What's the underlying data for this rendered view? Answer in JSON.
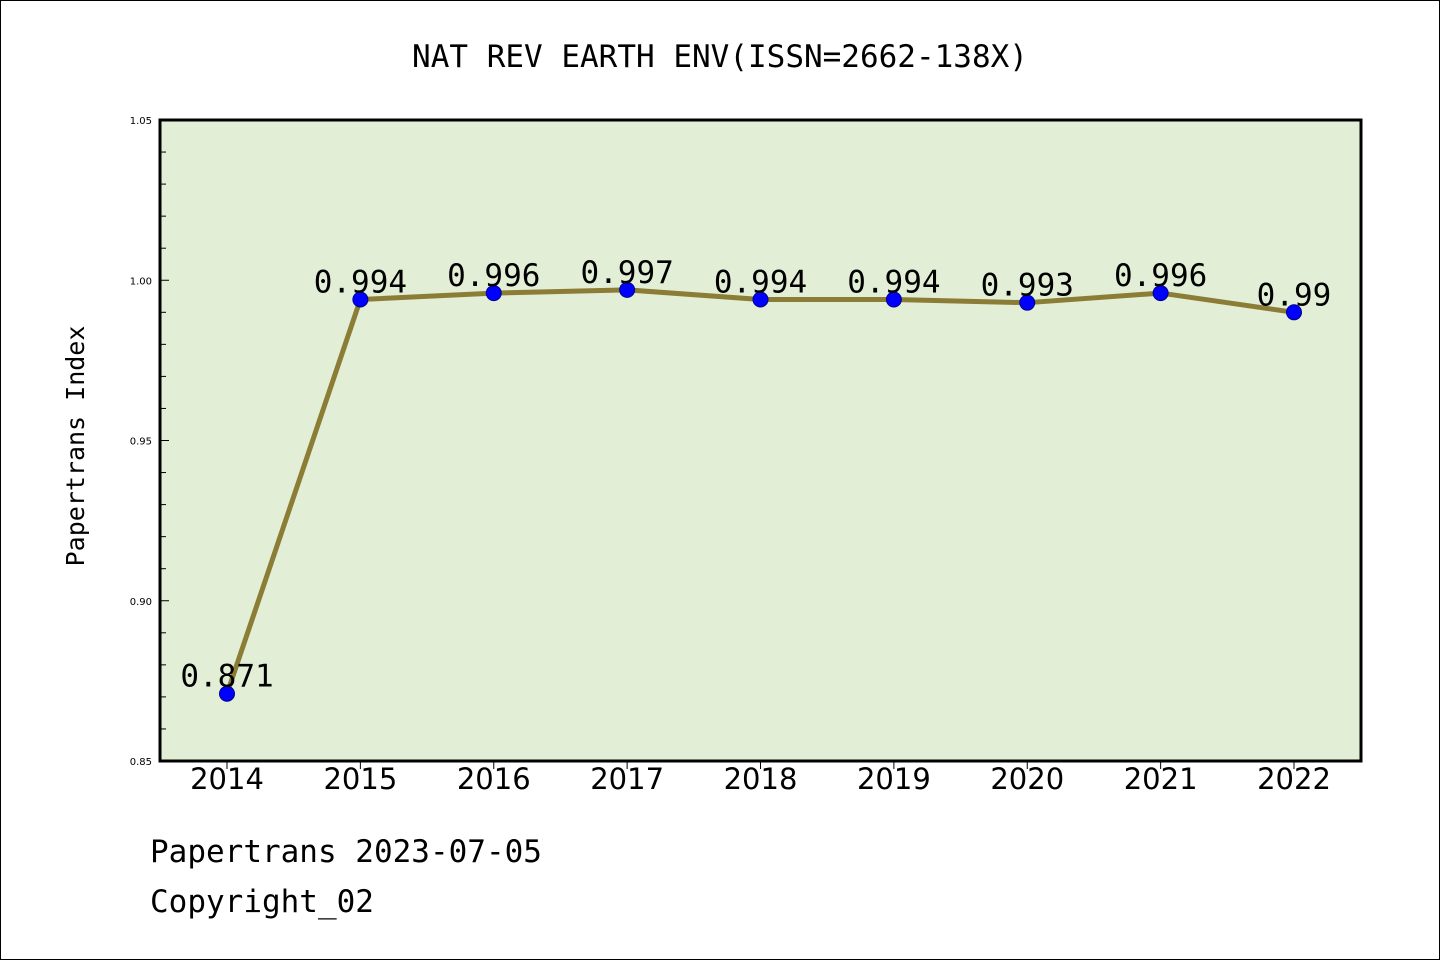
{
  "chart_data": {
    "type": "line",
    "title": "NAT REV EARTH ENV(ISSN=2662-138X)",
    "xlabel": "",
    "ylabel": "Papertrans Index",
    "categories": [
      "2014",
      "2015",
      "2016",
      "2017",
      "2018",
      "2019",
      "2020",
      "2021",
      "2022"
    ],
    "values": [
      0.871,
      0.994,
      0.996,
      0.997,
      0.994,
      0.994,
      0.993,
      0.996,
      0.99
    ],
    "data_labels": [
      "0.871",
      "0.994",
      "0.996",
      "0.997",
      "0.994",
      "0.994",
      "0.993",
      "0.996",
      "0.99"
    ],
    "ylim": [
      0.85,
      1.05
    ],
    "yticks": [
      "0.85",
      "0.90",
      "0.95",
      "1.00",
      "1.05"
    ],
    "ytick_values": [
      0.85,
      0.9,
      0.95,
      1.0,
      1.05
    ],
    "grid": false,
    "legend": "none",
    "colors": {
      "line": "#8b7d35",
      "marker": "#0000ff",
      "plot_background": "#e2efd6"
    }
  },
  "footer": {
    "line1": "Papertrans 2023-07-05",
    "line2": "Copyright_02"
  }
}
